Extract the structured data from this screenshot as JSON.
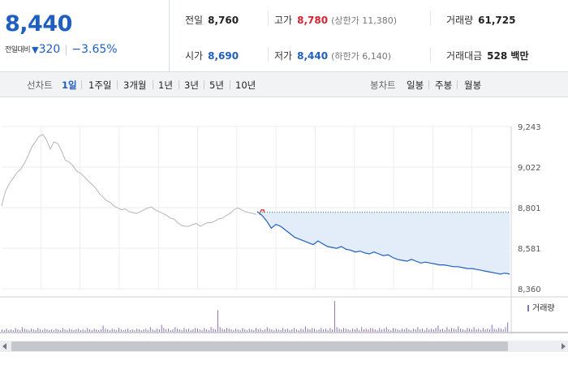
{
  "quote": {
    "current_price": "8,440",
    "change_label": "전일대비",
    "change_icon": "down-triangle-icon",
    "change_value": "320",
    "change_percent": "−3.65%"
  },
  "stats": {
    "prev_close": {
      "label": "전일",
      "value": "8,760"
    },
    "high": {
      "label": "고가",
      "value": "8,780",
      "limit": "(상한가 11,380)"
    },
    "volume": {
      "label": "거래량",
      "value": "61,725"
    },
    "open": {
      "label": "시가",
      "value": "8,690"
    },
    "low": {
      "label": "저가",
      "value": "8,440",
      "limit": "(하한가 6,140)"
    },
    "trade_value": {
      "label": "거래대금",
      "value": "528 백만"
    }
  },
  "line_tabs": {
    "label": "선차트",
    "items": [
      {
        "label": "1일",
        "active": true
      },
      {
        "label": "1주일",
        "active": false
      },
      {
        "label": "3개월",
        "active": false
      },
      {
        "label": "1년",
        "active": false
      },
      {
        "label": "3년",
        "active": false
      },
      {
        "label": "5년",
        "active": false
      },
      {
        "label": "10년",
        "active": false
      }
    ]
  },
  "candle_tabs": {
    "label": "봉차트",
    "items": [
      {
        "label": "일봉",
        "active": false
      },
      {
        "label": "주봉",
        "active": false
      },
      {
        "label": "월봉",
        "active": false
      }
    ]
  },
  "colors": {
    "up": "#d9222c",
    "down": "#1f5fbf",
    "prev_day_line": "#b5b5b5",
    "area_fill": "#e3ecf9",
    "volume_bar": "#8a6fb3",
    "reference_line": "#1a7a3a"
  },
  "chart_data": {
    "type": "line",
    "y_ticks": [
      "9,243",
      "9,022",
      "8,801",
      "8,581",
      "8,360"
    ],
    "ylim": [
      8360,
      9243
    ],
    "legend": "거래량",
    "reference_value": 8776,
    "series": [
      {
        "values": [
          8810,
          8890,
          8930,
          8960,
          8990,
          9010,
          9040,
          9080,
          9130,
          9160,
          9190,
          9200,
          9170,
          9120,
          9160,
          9150,
          9110,
          9060,
          9050,
          9030,
          9000,
          8990,
          8970,
          8950,
          8930,
          8910,
          8880,
          8860,
          8840,
          8830,
          8810,
          8800,
          8790,
          8795,
          8780,
          8775,
          8770,
          8780,
          8790,
          8800,
          8805,
          8790,
          8780,
          8770,
          8760,
          8745,
          8740,
          8720,
          8705,
          8700,
          8700,
          8710,
          8715,
          8700,
          8710,
          8720,
          8720,
          8730,
          8740,
          8745,
          8760,
          8770,
          8790,
          8800,
          8790,
          8780,
          8775,
          8770,
          8765
        ]
      },
      {
        "values": [
          8780,
          8760,
          8730,
          8690,
          8710,
          8700,
          8680,
          8660,
          8640,
          8630,
          8620,
          8610,
          8600,
          8620,
          8605,
          8590,
          8585,
          8580,
          8590,
          8575,
          8570,
          8560,
          8565,
          8555,
          8550,
          8560,
          8550,
          8540,
          8545,
          8530,
          8520,
          8515,
          8510,
          8520,
          8510,
          8500,
          8505,
          8500,
          8495,
          8490,
          8490,
          8485,
          8480,
          8480,
          8475,
          8470,
          8470,
          8465,
          8460,
          8455,
          8450,
          8445,
          8440,
          8445,
          8440
        ]
      }
    ],
    "volume": [
      3,
      2,
      4,
      2,
      3,
      2,
      5,
      3,
      2,
      6,
      4,
      3,
      2,
      4,
      3,
      2,
      5,
      3,
      2,
      4,
      3,
      2,
      3,
      2,
      4,
      3,
      2,
      5,
      3,
      2,
      4,
      3,
      2,
      3,
      4,
      2,
      3,
      2,
      5,
      3,
      2,
      4,
      3,
      2,
      3,
      8,
      4,
      3,
      2,
      4,
      3,
      2,
      5,
      3,
      2,
      3,
      4,
      2,
      3,
      2,
      4,
      3,
      2,
      3,
      4,
      2,
      6,
      3,
      2,
      4,
      3,
      9,
      5,
      3,
      4,
      2,
      3,
      6,
      4,
      3,
      2,
      5,
      3,
      4,
      2,
      3,
      5,
      4,
      3,
      2,
      5,
      3,
      2,
      6,
      4,
      3,
      28,
      6,
      4,
      3,
      5,
      4,
      3,
      2,
      4,
      3,
      2,
      5,
      3,
      2,
      4,
      3,
      2,
      5,
      3,
      4,
      2,
      3,
      6,
      4,
      3,
      2,
      4,
      3,
      2,
      5,
      3,
      4,
      2,
      3,
      5,
      3,
      2,
      4,
      3,
      7,
      4,
      3,
      5,
      4,
      2,
      3,
      5,
      3,
      4,
      2,
      5,
      3,
      40,
      6,
      4,
      3,
      5,
      4,
      3,
      2,
      4,
      3,
      5,
      2,
      6,
      3,
      4,
      3,
      5,
      4,
      3,
      2,
      5,
      3,
      4,
      6,
      3,
      2,
      5,
      4,
      3,
      2,
      4,
      3,
      5,
      3,
      2,
      4,
      3,
      6,
      3,
      4,
      2,
      5,
      3,
      4,
      3,
      5,
      8,
      3,
      4,
      2,
      6,
      3,
      5,
      4,
      3,
      7,
      4,
      3,
      2,
      5,
      4,
      3,
      6,
      3,
      4,
      2,
      5,
      3,
      4,
      3,
      9,
      4,
      3,
      5,
      4,
      3,
      6,
      12
    ]
  }
}
